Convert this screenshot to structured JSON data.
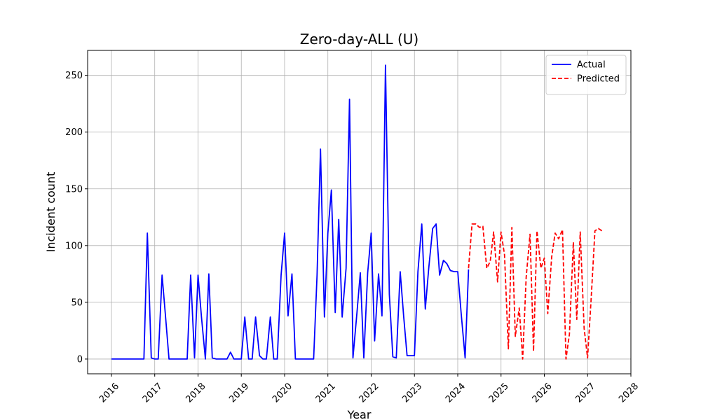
{
  "chart_data": {
    "type": "line",
    "title": "Zero-day-ALL (U)",
    "xlabel": "Year",
    "ylabel": "Incident count",
    "xlim": [
      2015.45,
      2028.0
    ],
    "ylim": [
      -13,
      272
    ],
    "xticks": [
      2016,
      2017,
      2018,
      2019,
      2020,
      2021,
      2022,
      2023,
      2024,
      2025,
      2026,
      2027,
      2028
    ],
    "yticks": [
      0,
      50,
      100,
      150,
      200,
      250
    ],
    "grid": true,
    "legend": "top-right",
    "series": [
      {
        "name": "Actual",
        "color": "#0000ff",
        "style": "solid",
        "x": [
          2016.0,
          2016.08,
          2016.17,
          2016.25,
          2016.33,
          2016.42,
          2016.5,
          2016.58,
          2016.67,
          2016.75,
          2016.83,
          2016.92,
          2017.0,
          2017.08,
          2017.17,
          2017.25,
          2017.33,
          2017.42,
          2017.5,
          2017.58,
          2017.67,
          2017.75,
          2017.83,
          2017.92,
          2018.0,
          2018.08,
          2018.17,
          2018.25,
          2018.33,
          2018.42,
          2018.5,
          2018.58,
          2018.67,
          2018.75,
          2018.83,
          2018.92,
          2019.0,
          2019.08,
          2019.17,
          2019.25,
          2019.33,
          2019.42,
          2019.5,
          2019.58,
          2019.67,
          2019.75,
          2019.83,
          2019.92,
          2020.0,
          2020.08,
          2020.17,
          2020.25,
          2020.33,
          2020.42,
          2020.5,
          2020.58,
          2020.67,
          2020.75,
          2020.83,
          2020.92,
          2021.0,
          2021.08,
          2021.17,
          2021.25,
          2021.33,
          2021.42,
          2021.5,
          2021.58,
          2021.67,
          2021.75,
          2021.83,
          2021.92,
          2022.0,
          2022.08,
          2022.17,
          2022.25,
          2022.33,
          2022.42,
          2022.5,
          2022.58,
          2022.67,
          2022.75,
          2022.83,
          2022.92,
          2023.0,
          2023.08,
          2023.17,
          2023.25,
          2023.33,
          2023.42,
          2023.5,
          2023.58,
          2023.67,
          2023.75,
          2023.83,
          2023.92,
          2024.0,
          2024.08,
          2024.17,
          2024.25
        ],
        "values": [
          0,
          0,
          0,
          0,
          0,
          0,
          0,
          0,
          0,
          0,
          111,
          1,
          0,
          0,
          74,
          37,
          0,
          0,
          0,
          0,
          0,
          0,
          74,
          1,
          74,
          37,
          0,
          75,
          1,
          0,
          0,
          0,
          0,
          6,
          0,
          0,
          0,
          37,
          0,
          0,
          37,
          3,
          0,
          0,
          37,
          0,
          0,
          74,
          111,
          38,
          75,
          0,
          0,
          0,
          0,
          0,
          0,
          74,
          185,
          37,
          111,
          149,
          41,
          123,
          37,
          80,
          229,
          1,
          40,
          76,
          1,
          76,
          111,
          16,
          75,
          38,
          259,
          57,
          2,
          1,
          77,
          38,
          3,
          3,
          3,
          77,
          119,
          44,
          80,
          115,
          119,
          74,
          87,
          84,
          78,
          77,
          77,
          40,
          1,
          79
        ]
      },
      {
        "name": "Predicted",
        "color": "#ff0000",
        "style": "dashed",
        "x": [
          2024.25,
          2024.33,
          2024.42,
          2024.5,
          2024.58,
          2024.67,
          2024.75,
          2024.83,
          2024.92,
          2025.0,
          2025.08,
          2025.17,
          2025.25,
          2025.33,
          2025.42,
          2025.5,
          2025.58,
          2025.67,
          2025.75,
          2025.83,
          2025.92,
          2026.0,
          2026.08,
          2026.17,
          2026.25,
          2026.33,
          2026.42,
          2026.5,
          2026.58,
          2026.67,
          2026.75,
          2026.83,
          2026.92,
          2027.0,
          2027.08,
          2027.17,
          2027.25,
          2027.33
        ],
        "values": [
          80,
          119,
          119,
          116,
          117,
          80,
          86,
          112,
          68,
          112,
          92,
          9,
          116,
          20,
          45,
          0,
          72,
          110,
          7,
          113,
          80,
          89,
          40,
          90,
          111,
          106,
          114,
          0,
          22,
          103,
          35,
          112,
          27,
          1,
          52,
          113,
          115,
          113
        ]
      }
    ]
  }
}
